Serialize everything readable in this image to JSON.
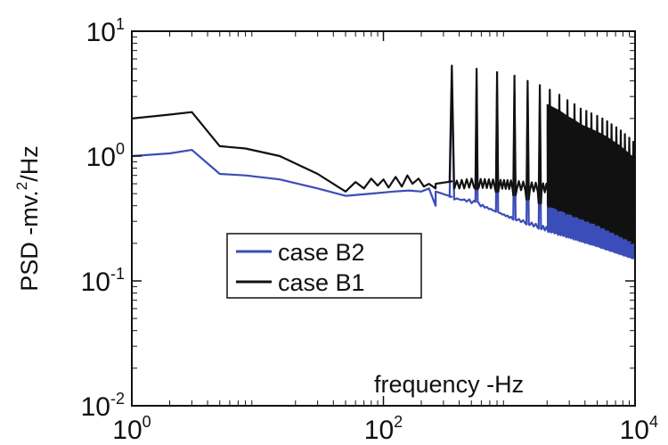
{
  "chart_data": {
    "type": "line",
    "title": "",
    "xlabel": "frequency -Hz",
    "ylabel_base": "PSD -mv.",
    "ylabel_exp": "2",
    "ylabel_tail": "/Hz",
    "x_scale": "log",
    "y_scale": "log",
    "xlim": [
      1,
      10000
    ],
    "ylim": [
      0.01,
      10
    ],
    "grid": false,
    "legend_position": "center-left",
    "x_ticks": [
      {
        "base": "10",
        "exp": "0",
        "value": 1
      },
      {
        "base": "10",
        "exp": "2",
        "value": 100
      },
      {
        "base": "10",
        "exp": "4",
        "value": 10000
      }
    ],
    "y_ticks": [
      {
        "base": "10",
        "exp": "1",
        "value": 10
      },
      {
        "base": "10",
        "exp": "0",
        "value": 1
      },
      {
        "base": "10",
        "exp": "-1",
        "value": 0.1
      },
      {
        "base": "10",
        "exp": "-2",
        "value": 0.01
      }
    ],
    "series": [
      {
        "name": "case B2",
        "color": "#3a4db8",
        "points": [
          [
            1,
            1.0
          ],
          [
            2,
            1.05
          ],
          [
            3,
            1.12
          ],
          [
            5,
            0.72
          ],
          [
            8,
            0.7
          ],
          [
            15,
            0.65
          ],
          [
            30,
            0.55
          ],
          [
            50,
            0.48
          ],
          [
            80,
            0.5
          ],
          [
            120,
            0.52
          ],
          [
            160,
            0.53
          ],
          [
            200,
            0.52
          ],
          [
            230,
            0.55
          ],
          [
            260,
            0.4
          ]
        ],
        "peak_baseline": [
          [
            260,
            0.52
          ],
          [
            500,
            0.42
          ],
          [
            1000,
            0.33
          ],
          [
            2000,
            0.27
          ],
          [
            4000,
            0.22
          ],
          [
            10000,
            0.17
          ]
        ],
        "peak_heights": [
          [
            350,
            4.0
          ],
          [
            550,
            3.8
          ],
          [
            800,
            3.5
          ],
          [
            1100,
            3.2
          ],
          [
            1400,
            3.0
          ],
          [
            1750,
            2.8
          ],
          [
            2100,
            2.6
          ],
          [
            2500,
            2.4
          ],
          [
            2900,
            2.2
          ],
          [
            3300,
            2.0
          ],
          [
            3700,
            1.9
          ],
          [
            4100,
            1.8
          ],
          [
            4500,
            1.7
          ],
          [
            5000,
            1.6
          ],
          [
            5500,
            1.5
          ],
          [
            6000,
            1.45
          ],
          [
            6500,
            1.4
          ],
          [
            7100,
            1.35
          ],
          [
            7700,
            1.3
          ],
          [
            8300,
            1.25
          ],
          [
            9000,
            1.2
          ],
          [
            9700,
            1.15
          ]
        ],
        "trough_floor": [
          [
            500,
            0.45
          ],
          [
            1000,
            0.32
          ],
          [
            2000,
            0.25
          ],
          [
            5000,
            0.19
          ],
          [
            10000,
            0.15
          ]
        ]
      },
      {
        "name": "case B1",
        "color": "#111111",
        "points": [
          [
            1,
            2.0
          ],
          [
            2,
            2.15
          ],
          [
            3,
            2.25
          ],
          [
            5,
            1.2
          ],
          [
            8,
            1.15
          ],
          [
            15,
            1.0
          ],
          [
            30,
            0.72
          ],
          [
            50,
            0.52
          ],
          [
            60,
            0.62
          ],
          [
            70,
            0.55
          ],
          [
            80,
            0.66
          ],
          [
            90,
            0.58
          ],
          [
            100,
            0.65
          ],
          [
            110,
            0.56
          ],
          [
            125,
            0.68
          ],
          [
            140,
            0.57
          ],
          [
            155,
            0.7
          ],
          [
            170,
            0.6
          ],
          [
            190,
            0.66
          ],
          [
            210,
            0.57
          ],
          [
            230,
            0.6
          ],
          [
            260,
            0.55
          ]
        ],
        "peak_baseline": [
          [
            260,
            0.6
          ],
          [
            500,
            0.66
          ],
          [
            1000,
            0.64
          ],
          [
            2000,
            0.6
          ],
          [
            4000,
            0.58
          ],
          [
            10000,
            0.55
          ]
        ],
        "peak_heights": [
          [
            350,
            5.3
          ],
          [
            550,
            5.0
          ],
          [
            800,
            4.7
          ],
          [
            1100,
            4.4
          ],
          [
            1400,
            4.0
          ],
          [
            1750,
            3.7
          ],
          [
            2100,
            3.4
          ],
          [
            2500,
            3.1
          ],
          [
            2900,
            2.8
          ],
          [
            3300,
            2.6
          ],
          [
            3700,
            2.4
          ],
          [
            4100,
            2.3
          ],
          [
            4500,
            2.2
          ],
          [
            5000,
            2.1
          ],
          [
            5500,
            2.0
          ],
          [
            6000,
            1.9
          ],
          [
            6500,
            1.8
          ],
          [
            7100,
            1.7
          ],
          [
            7700,
            1.6
          ],
          [
            8300,
            1.5
          ],
          [
            9000,
            1.4
          ],
          [
            9700,
            1.3
          ]
        ],
        "trough_floor": [
          [
            500,
            0.55
          ],
          [
            1000,
            0.5
          ],
          [
            2000,
            0.4
          ],
          [
            5000,
            0.28
          ],
          [
            10000,
            0.2
          ]
        ]
      }
    ]
  }
}
